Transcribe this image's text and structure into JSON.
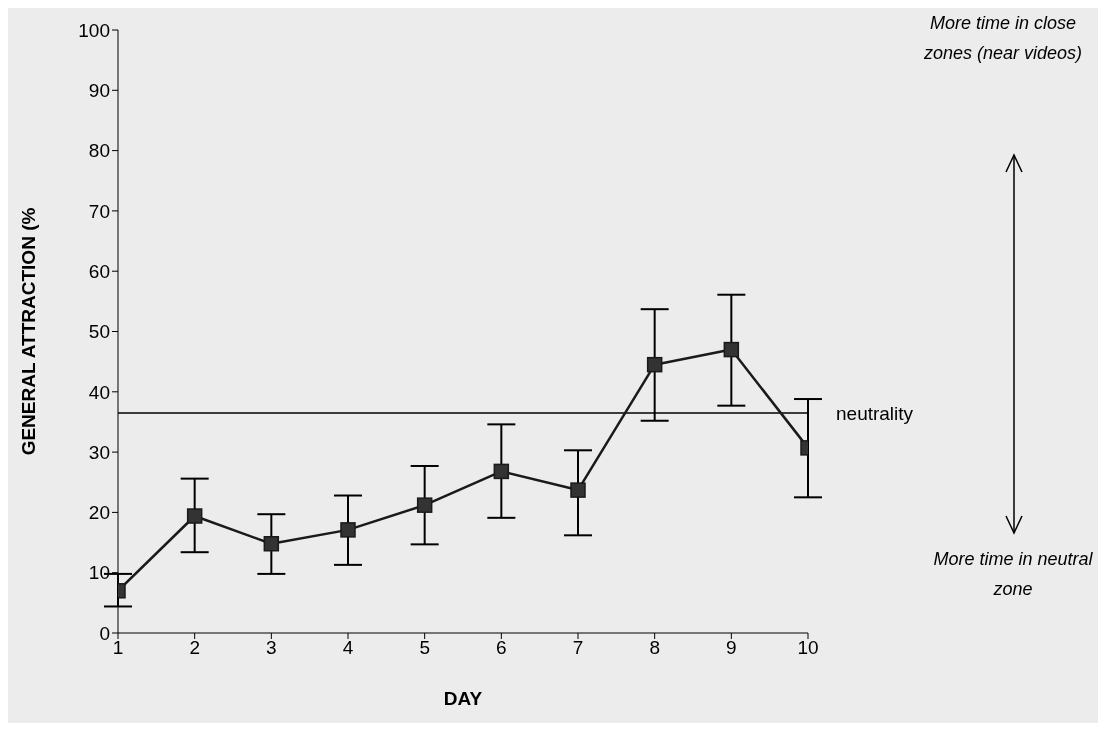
{
  "chart_data": {
    "type": "line",
    "xlabel": "DAY",
    "ylabel": "GENERAL ATTRACTION (%",
    "x": [
      1,
      2,
      3,
      4,
      5,
      6,
      7,
      8,
      9,
      10
    ],
    "series": [
      {
        "color": "#1a1a1a",
        "values": [
          7.0,
          19.4,
          14.8,
          17.1,
          21.2,
          26.8,
          23.7,
          44.5,
          47.0,
          30.7
        ],
        "errors": [
          [
            4.4,
            9.8
          ],
          [
            13.4,
            25.6
          ],
          [
            9.8,
            19.7
          ],
          [
            11.3,
            22.8
          ],
          [
            14.7,
            27.7
          ],
          [
            19.1,
            34.6
          ],
          [
            16.2,
            30.3
          ],
          [
            35.2,
            53.7
          ],
          [
            37.7,
            56.1
          ],
          [
            22.5,
            38.8
          ]
        ]
      }
    ],
    "xlim": [
      1,
      10
    ],
    "xticks": [
      1,
      2,
      3,
      4,
      5,
      6,
      7,
      8,
      9,
      10
    ],
    "ylim": [
      0,
      100
    ],
    "yticks": [
      0,
      10,
      20,
      30,
      40,
      50,
      60,
      70,
      80,
      90,
      100
    ],
    "ref_lines": [
      {
        "axis": "y",
        "value": 36.5,
        "label": "neutrality",
        "color": "#000000"
      }
    ],
    "annotations": [
      "More time in close zones (near videos)",
      "More time in neutral zone"
    ],
    "grid": false,
    "legend": false,
    "marker": "square",
    "line_style": "solid"
  }
}
